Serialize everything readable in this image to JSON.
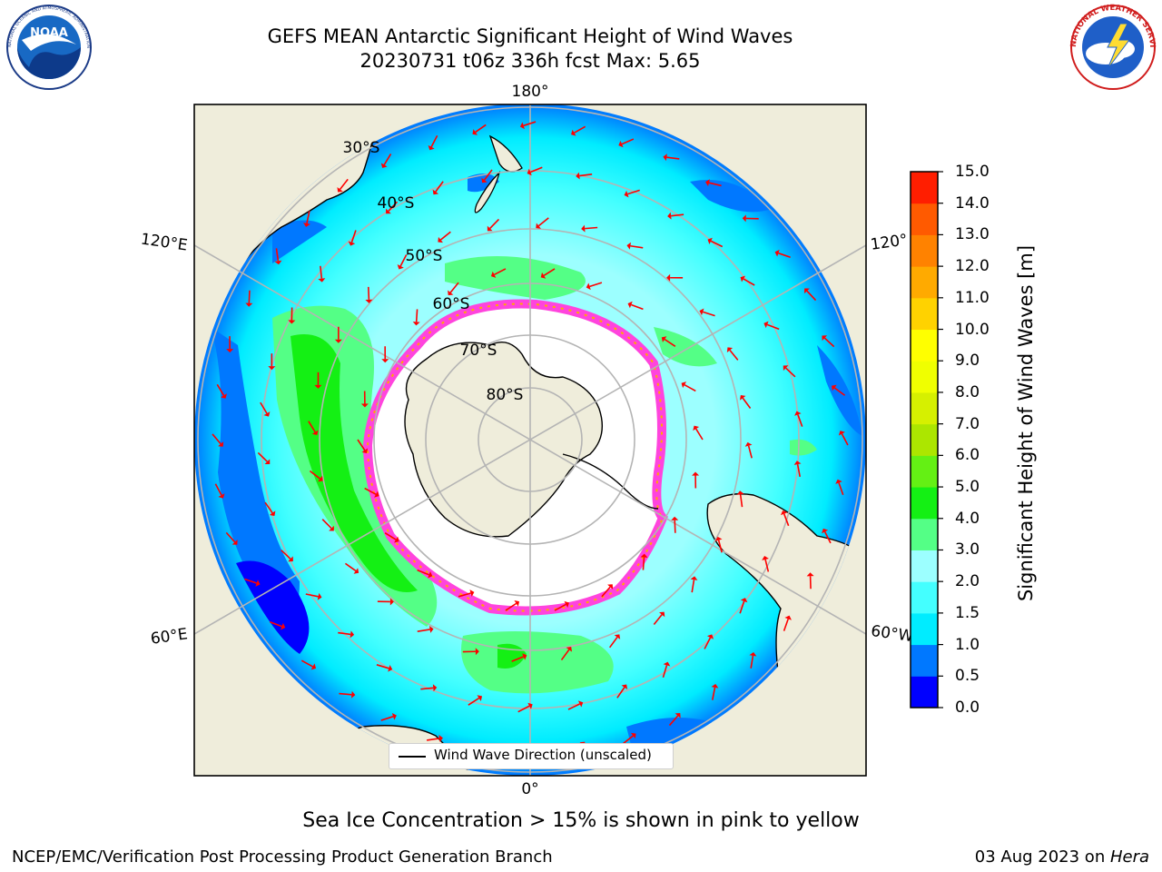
{
  "header": {
    "title_line1": "GEFS MEAN Antarctic Significant Height of Wind Waves",
    "title_line2": "20230731 t06z 336h fcst   Max: 5.65"
  },
  "logos": {
    "noaa": {
      "text": "NOAA",
      "ring_text": "NATIONAL OCEANIC AND ATMOSPHERIC ADMINISTRATION · U.S. DEPARTMENT OF COMMERCE"
    },
    "nws": {
      "ring_text": "NATIONAL WEATHER SERVICE"
    }
  },
  "map": {
    "projection": "south-polar-stereographic",
    "longitude_labels": [
      "180°",
      "120°E",
      "120°",
      "60°E",
      "60°W",
      "0°"
    ],
    "latitude_labels": [
      "30°S",
      "40°S",
      "50°S",
      "60°S",
      "70°S",
      "80°S"
    ],
    "legend_label": "Wind Wave Direction (unscaled)",
    "colors": {
      "land": "#efeddb",
      "ice_interior": "#ffffff",
      "sea_ice_edge": "#ff44dd",
      "arrow": "#ff0000",
      "gridline": "#b4b4b4"
    }
  },
  "colorbar": {
    "label": "Significant Height of Wind Waves [m]",
    "ticks": [
      "0.0",
      "0.5",
      "1.0",
      "1.5",
      "2.0",
      "3.0",
      "4.0",
      "5.0",
      "6.0",
      "7.0",
      "8.0",
      "9.0",
      "10.0",
      "11.0",
      "12.0",
      "13.0",
      "14.0",
      "15.0"
    ],
    "colors": [
      "#0000ff",
      "#0078ff",
      "#00ecff",
      "#44ffff",
      "#9cffff",
      "#54ff86",
      "#14f014",
      "#64f014",
      "#ace600",
      "#d6f000",
      "#f0ff00",
      "#ffff00",
      "#ffd200",
      "#ffaa00",
      "#ff8200",
      "#ff5a00",
      "#ff1e00"
    ]
  },
  "caption": "Sea Ice Concentration > 15% is shown in pink to yellow",
  "footer": {
    "left": "NCEP/EMC/Verification Post Processing Product Generation Branch",
    "right_prefix": "03 Aug 2023 on ",
    "right_host": "Hera"
  }
}
